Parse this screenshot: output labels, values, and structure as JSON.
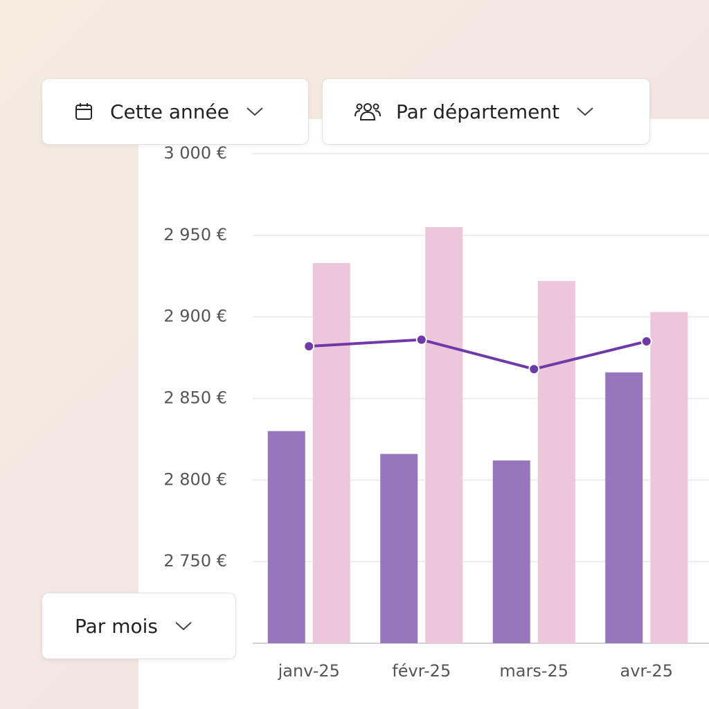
{
  "ui": {
    "filters": [
      "Cette année",
      "Par département",
      "Par mois"
    ]
  },
  "chart_data": {
    "type": "bar",
    "categories": [
      "janv-25",
      "févr-25",
      "mars-25",
      "avr-25"
    ],
    "series": [
      {
        "type": "bar",
        "color": "#9775bd",
        "values": [
          2830,
          2816,
          2812,
          2866
        ]
      },
      {
        "type": "bar",
        "color": "#eec6db",
        "values": [
          2933,
          2955,
          2922,
          2903
        ]
      },
      {
        "type": "line",
        "color": "#6f3aa8",
        "values": [
          2882,
          2886,
          2868,
          2885
        ]
      }
    ],
    "ylim": [
      2700,
      3000
    ],
    "yticks": [
      {
        "value": 2750,
        "label": "2 750 €"
      },
      {
        "value": 2800,
        "label": "2 800 €"
      },
      {
        "value": 2850,
        "label": "2 850 €"
      },
      {
        "value": 2900,
        "label": "2 900 €"
      },
      {
        "value": 2950,
        "label": "2 950 €"
      },
      {
        "value": 3000,
        "label": "3 000 €"
      }
    ],
    "grid": true
  }
}
